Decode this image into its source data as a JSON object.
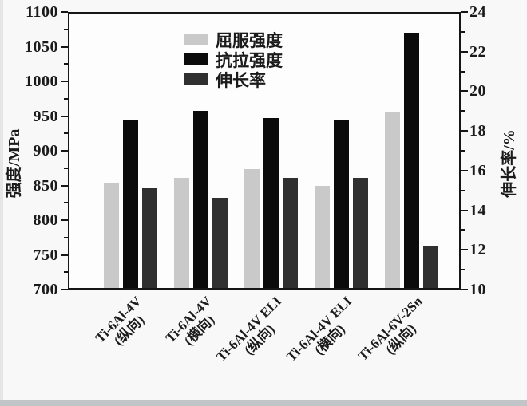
{
  "page": {
    "background": "#f7f8f7",
    "bottom_strip_color": "#c1c5c7",
    "left_edge_color": "#e4e6e6"
  },
  "chart_data": {
    "type": "bar",
    "title": "",
    "grid": false,
    "categories": [
      {
        "line1": "Ti-6Al-4V",
        "line2": "(纵向)"
      },
      {
        "line1": "Ti-6Al-4V",
        "line2": "(横向)"
      },
      {
        "line1": "Ti-6Al-4V ELI",
        "line2": "(纵向)"
      },
      {
        "line1": "Ti-6Al-4V ELI",
        "line2": "(横向)"
      },
      {
        "line1": "Ti-6Al-6V-2Sn",
        "line2": "(纵向)"
      }
    ],
    "series": [
      {
        "name": "屈服强度",
        "axis": "left",
        "color": "#c9c9c9",
        "values": [
          852,
          861,
          873,
          849,
          956
        ]
      },
      {
        "name": "抗拉强度",
        "axis": "left",
        "color": "#0b0b0b",
        "values": [
          945,
          958,
          948,
          945,
          1072
        ]
      },
      {
        "name": "伸长率",
        "axis": "right",
        "color": "#303030",
        "values": [
          15.1,
          14.6,
          15.6,
          15.6,
          12.1
        ]
      }
    ],
    "left_axis": {
      "label": "强度/MPa",
      "min": 700,
      "max": 1100,
      "major_ticks": [
        1100,
        1050,
        1000,
        950,
        900,
        850,
        800,
        750,
        700
      ],
      "minor_step": 25
    },
    "right_axis": {
      "label": "伸长率/%",
      "min": 10,
      "max": 24,
      "major_ticks": [
        24,
        22,
        20,
        18,
        16,
        14,
        12,
        10
      ],
      "minor_step": 1
    },
    "legend": {
      "position": "top-center-inside",
      "entries": [
        "屈服强度",
        "抗拉强度",
        "伸长率"
      ]
    }
  }
}
